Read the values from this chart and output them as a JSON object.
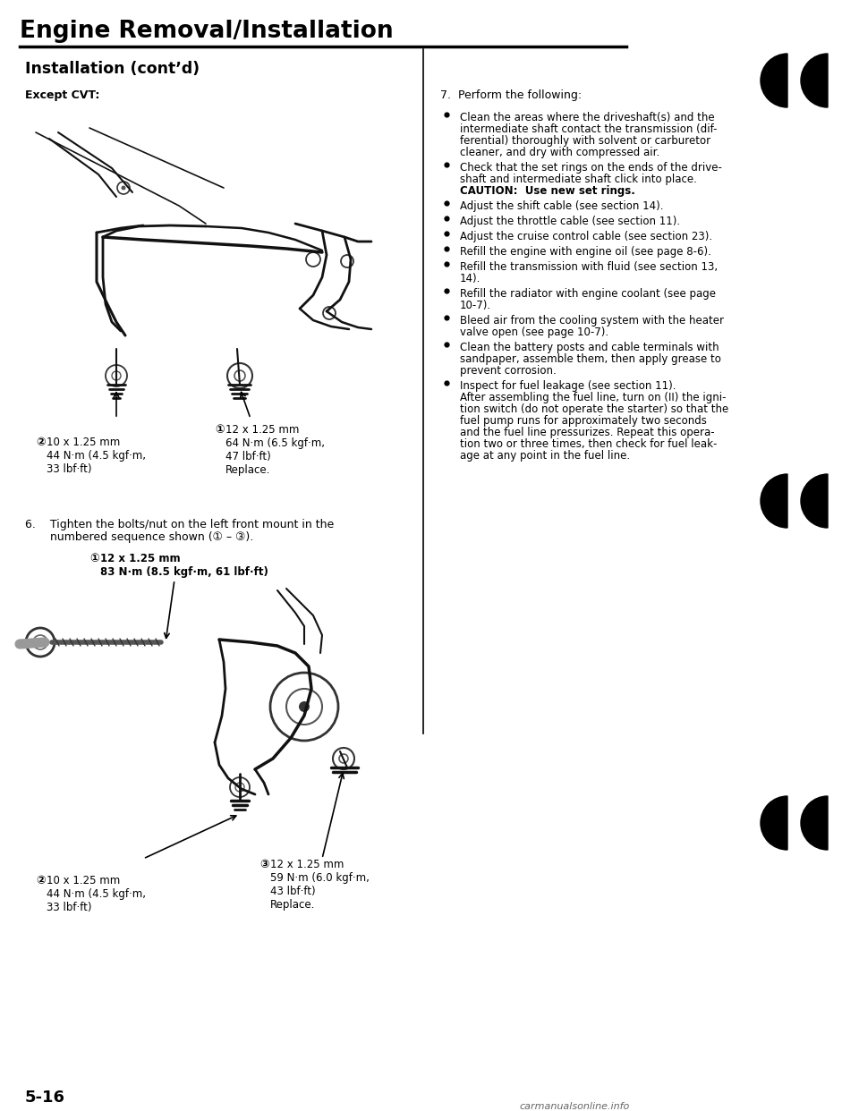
{
  "title": "Engine Removal/Installation",
  "subtitle": "Installation (cont’d)",
  "except_cvt_label": "Except CVT:",
  "step6_line1": "6.    Tighten the bolts/nut on the left front mount in the",
  "step6_line2": "       numbered sequence shown (① – ③).",
  "step7_text": "7.    Perform the following:",
  "bolt1_circ": "①",
  "bolt1_label": "12 x 1.25 mm\n64 N·m (6.5 kgf·m,\n47 lbf·ft)\nReplace.",
  "bolt2_circ": "②",
  "bolt2_label": "10 x 1.25 mm\n44 N·m (4.5 kgf·m,\n33 lbf·ft)",
  "bolt3a_circ": "①",
  "bolt3a_label": "12 x 1.25 mm\n83 N·m (8.5 kgf·m, 61 lbf·ft)",
  "bolt3b_circ": "②",
  "bolt3b_label": "10 x 1.25 mm\n44 N·m (4.5 kgf·m,\n33 lbf·ft)",
  "bolt3c_circ": "③",
  "bolt3c_label": "12 x 1.25 mm\n59 N·m (6.0 kgf·m,\n43 lbf·ft)\nReplace.",
  "bullet_points": [
    [
      "Clean the areas where the driveshaft(s) and the",
      "intermediate shaft contact the transmission (dif-",
      "ferential) thoroughly with solvent or carburetor",
      "cleaner, and dry with compressed air."
    ],
    [
      "Check that the set rings on the ends of the drive-",
      "shaft and intermediate shaft click into place.",
      "CAUTION:  Use new set rings."
    ],
    [
      "Adjust the shift cable (see section 14)."
    ],
    [
      "Adjust the throttle cable (see section 11)."
    ],
    [
      "Adjust the cruise control cable (see section 23)."
    ],
    [
      "Refill the engine with engine oil (see page 8-6)."
    ],
    [
      "Refill the transmission with fluid (see section 13,",
      "14)."
    ],
    [
      "Refill the radiator with engine coolant (see page",
      "10-7)."
    ],
    [
      "Bleed air from the cooling system with the heater",
      "valve open (see page 10-7)."
    ],
    [
      "Clean the battery posts and cable terminals with",
      "sandpaper, assemble them, then apply grease to",
      "prevent corrosion."
    ],
    [
      "Inspect for fuel leakage (see section 11).",
      "After assembling the fuel line, turn on (II) the igni-",
      "tion switch (do not operate the starter) so that the",
      "fuel pump runs for approximately two seconds",
      "and the fuel line pressurizes. Repeat this opera-",
      "tion two or three times, then check for fuel leak-",
      "age at any point in the fuel line."
    ]
  ],
  "page_num": "5-16",
  "bg_color": "#ffffff",
  "text_color": "#000000"
}
